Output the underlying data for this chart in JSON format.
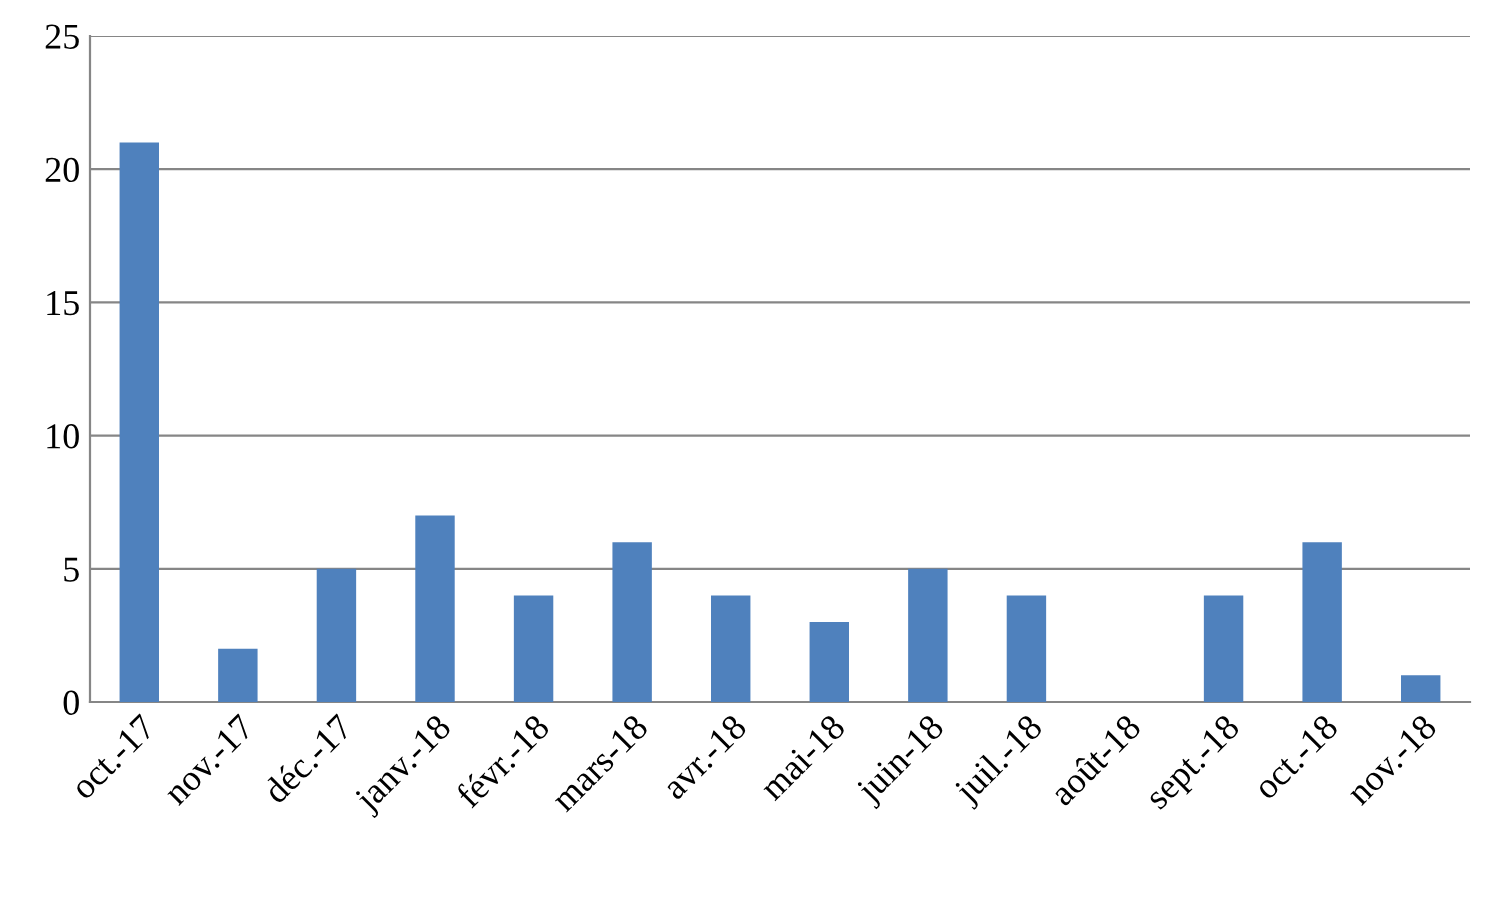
{
  "chart_data": {
    "type": "bar",
    "categories": [
      "oct.-17",
      "nov.-17",
      "déc.-17",
      "janv.-18",
      "févr.-18",
      "mars-18",
      "avr.-18",
      "mai-18",
      "juin-18",
      "juil.-18",
      "août-18",
      "sept.-18",
      "oct.-18",
      "nov.-18"
    ],
    "values": [
      21,
      2,
      5,
      7,
      4,
      6,
      4,
      3,
      5,
      4,
      0,
      4,
      6,
      1
    ],
    "color": "#4f81bd",
    "ylim": [
      0,
      25
    ],
    "yticks": [
      0,
      5,
      10,
      15,
      20,
      25
    ],
    "grid": "y"
  }
}
